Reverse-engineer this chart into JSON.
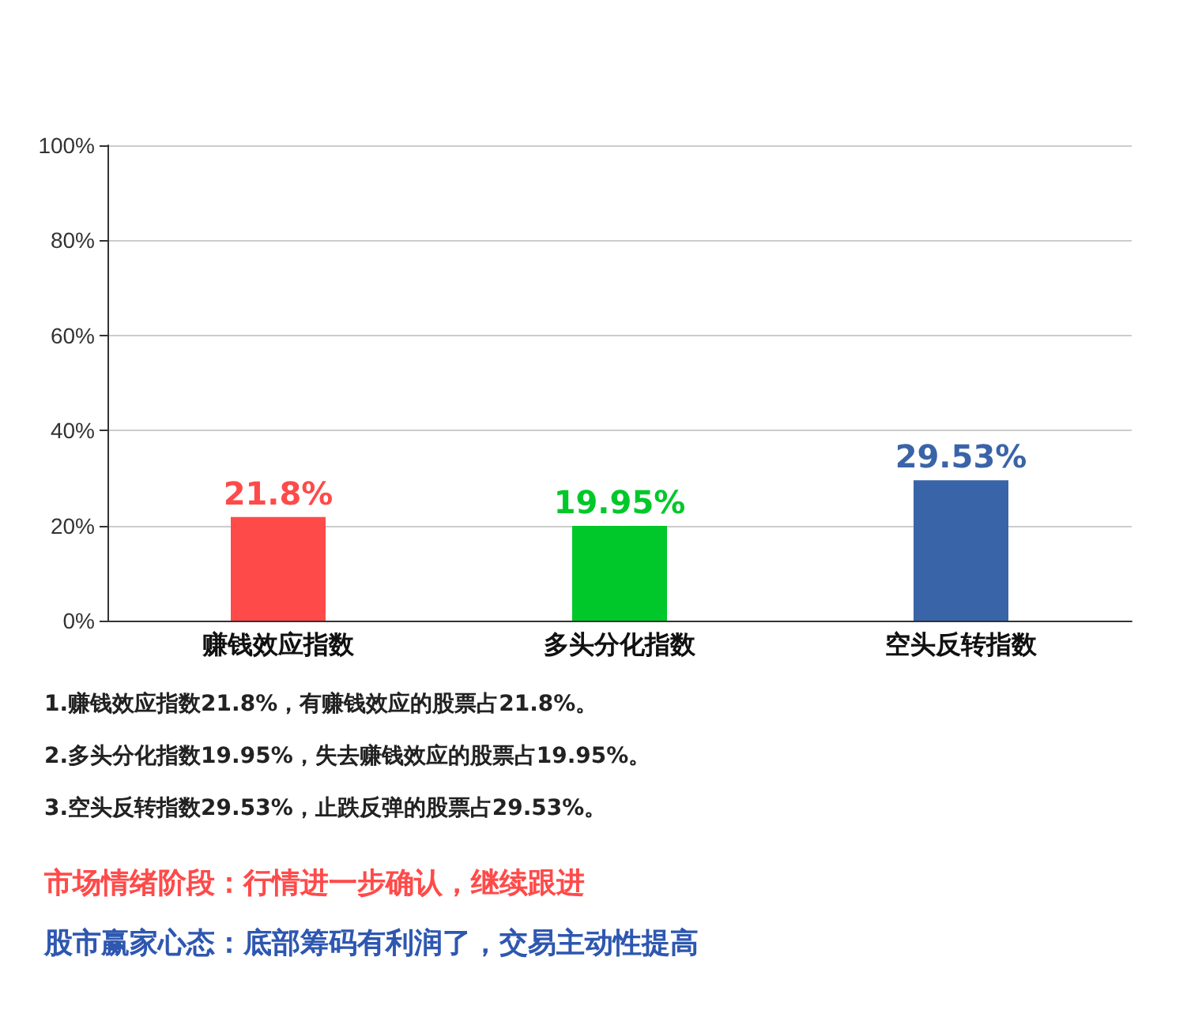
{
  "chart_data": {
    "type": "bar",
    "categories": [
      "赚钱效应指数",
      "多头分化指数",
      "空头反转指数"
    ],
    "values": [
      21.8,
      19.95,
      29.53
    ],
    "colors": [
      "#ff4a4a",
      "#00c82a",
      "#3a64a8"
    ],
    "value_labels": [
      "21.8%",
      "19.95%",
      "29.53%"
    ],
    "ylim": [
      0,
      100
    ],
    "yticks": [
      {
        "value": 0,
        "label": "0%"
      },
      {
        "value": 20,
        "label": "20%"
      },
      {
        "value": 40,
        "label": "40%"
      },
      {
        "value": 60,
        "label": "60%"
      },
      {
        "value": 80,
        "label": "80%"
      },
      {
        "value": 100,
        "label": "100%"
      }
    ],
    "grid": "y",
    "annotations": [
      "1.赚钱效应指数21.8%，有赚钱效应的股票占21.8%。",
      "2.多头分化指数19.95%，失去赚钱效应的股票占19.95%。",
      "3.空头反转指数29.53%，止跌反弹的股票占29.53%。",
      "市场情绪阶段：行情进一步确认，继续跟进",
      "股市赢家心态：底部筹码有利润了，交易主动性提高"
    ]
  }
}
